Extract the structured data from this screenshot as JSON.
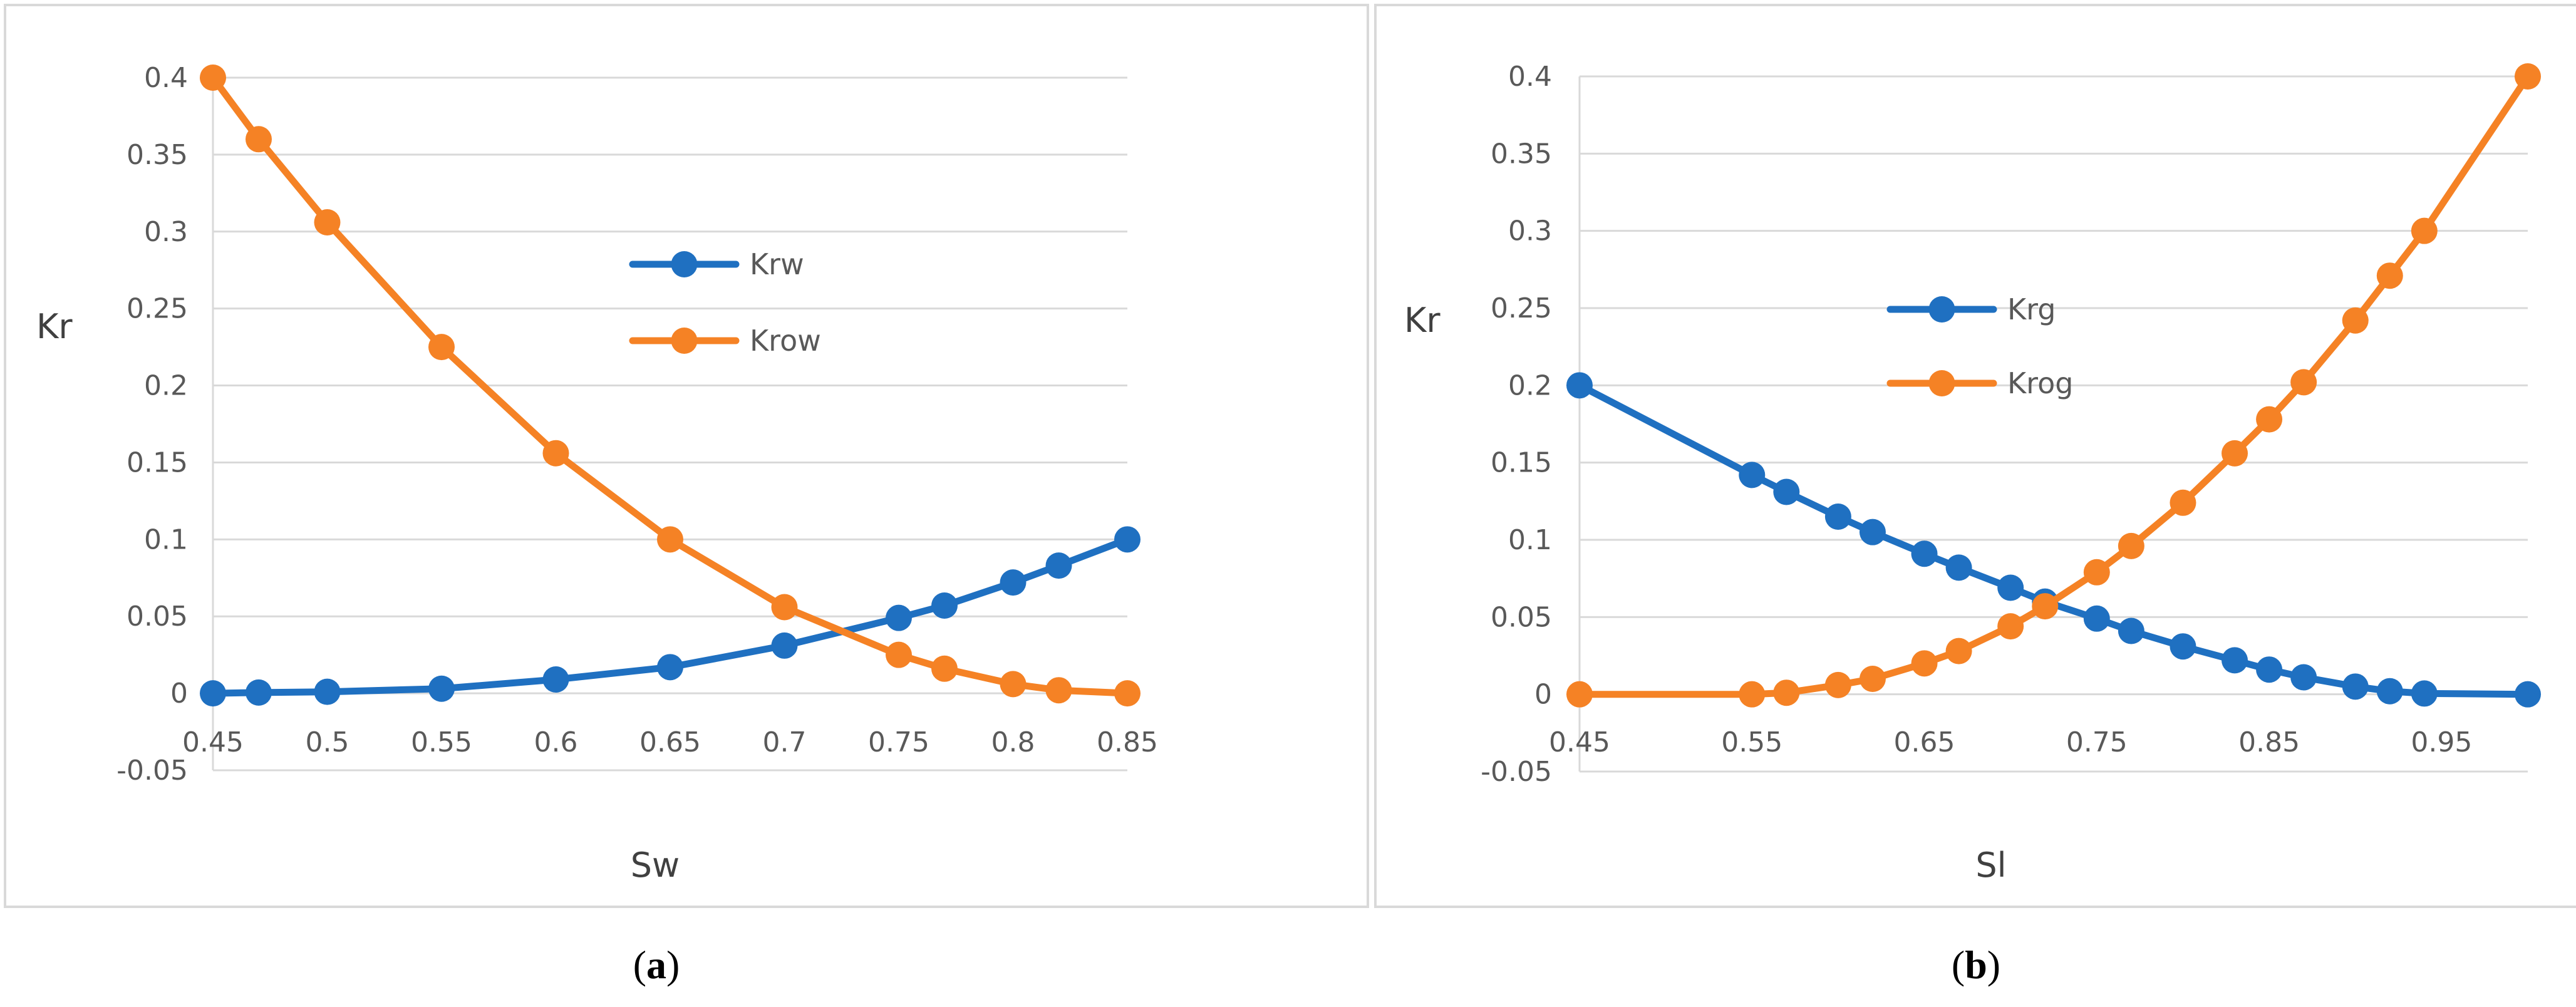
{
  "colors": {
    "blue": "#1f70c1",
    "orange": "#f58225"
  },
  "chart_data": [
    {
      "type": "line",
      "panel": "(a)",
      "caption_letter": "a",
      "title": "",
      "xlabel": "Sw",
      "ylabel": "Kr",
      "xlim": [
        0.45,
        0.85
      ],
      "ylim": [
        -0.05,
        0.4
      ],
      "xticks": [
        "0.45",
        "0.5",
        "0.55",
        "0.6",
        "0.65",
        "0.7",
        "0.75",
        "0.8",
        "0.85"
      ],
      "yticks": [
        "0.4",
        "0.35",
        "0.3",
        "0.25",
        "0.2",
        "0.15",
        "0.1",
        "0.05",
        "0",
        "-0.05"
      ],
      "legend_position": "center",
      "series": [
        {
          "name": "Krw",
          "color": "#1f70c1",
          "x": [
            0.45,
            0.47,
            0.5,
            0.55,
            0.6,
            0.65,
            0.7,
            0.75,
            0.77,
            0.8,
            0.82,
            0.85
          ],
          "y": [
            0,
            0.0005,
            0.001,
            0.003,
            0.009,
            0.017,
            0.031,
            0.049,
            0.057,
            0.072,
            0.083,
            0.1
          ]
        },
        {
          "name": "Krow",
          "color": "#f58225",
          "x": [
            0.45,
            0.47,
            0.5,
            0.55,
            0.6,
            0.65,
            0.7,
            0.75,
            0.77,
            0.8,
            0.82,
            0.85
          ],
          "y": [
            0.4,
            0.36,
            0.306,
            0.225,
            0.156,
            0.1,
            0.056,
            0.025,
            0.016,
            0.006,
            0.002,
            0
          ]
        }
      ]
    },
    {
      "type": "line",
      "panel": "(b)",
      "caption_letter": "b",
      "title": "",
      "xlabel": "Sl",
      "ylabel": "Kr",
      "xlim": [
        0.45,
        1.0
      ],
      "ylim": [
        -0.05,
        0.4
      ],
      "xticks": [
        "0.45",
        "0.55",
        "0.65",
        "0.75",
        "0.85",
        "0.95"
      ],
      "yticks": [
        "0.4",
        "0.35",
        "0.3",
        "0.25",
        "0.2",
        "0.15",
        "0.1",
        "0.05",
        "0",
        "-0.05"
      ],
      "legend_position": "center-left",
      "series": [
        {
          "name": "Krg",
          "color": "#1f70c1",
          "x": [
            0.45,
            0.55,
            0.57,
            0.6,
            0.62,
            0.65,
            0.67,
            0.7,
            0.72,
            0.75,
            0.77,
            0.8,
            0.83,
            0.85,
            0.87,
            0.9,
            0.92,
            0.94,
            1.0
          ],
          "y": [
            0.2,
            0.142,
            0.131,
            0.115,
            0.105,
            0.091,
            0.082,
            0.069,
            0.06,
            0.049,
            0.041,
            0.031,
            0.022,
            0.016,
            0.011,
            0.005,
            0.002,
            0.0005,
            0
          ]
        },
        {
          "name": "Krog",
          "color": "#f58225",
          "x": [
            0.45,
            0.55,
            0.57,
            0.6,
            0.62,
            0.65,
            0.67,
            0.7,
            0.72,
            0.75,
            0.77,
            0.8,
            0.83,
            0.85,
            0.87,
            0.9,
            0.92,
            0.94,
            1.0
          ],
          "y": [
            0,
            0,
            0.001,
            0.006,
            0.01,
            0.02,
            0.028,
            0.044,
            0.057,
            0.079,
            0.096,
            0.124,
            0.156,
            0.178,
            0.202,
            0.242,
            0.271,
            0.3,
            0.4
          ]
        }
      ]
    }
  ]
}
